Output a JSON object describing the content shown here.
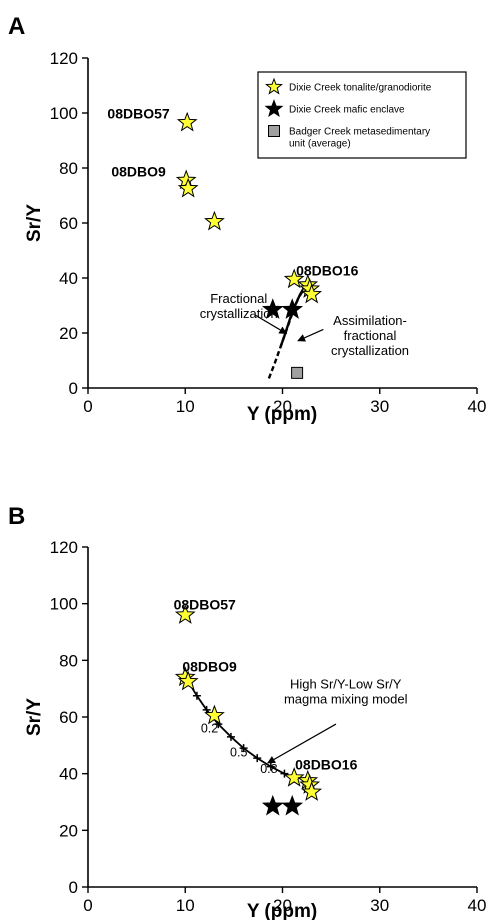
{
  "chart_data": [
    {
      "panel": "A",
      "type": "scatter",
      "xlabel": "Y (ppm)",
      "ylabel": "Sr/Y",
      "xlim": [
        0,
        40
      ],
      "ylim": [
        0,
        120
      ],
      "xticks": [
        0,
        10,
        20,
        30,
        40
      ],
      "yticks": [
        0,
        20,
        40,
        60,
        80,
        100,
        120
      ],
      "legend": {
        "position": "top-right",
        "entries": [
          {
            "name": "Dixie Creek tonalite/granodiorite",
            "marker": "yellow-star"
          },
          {
            "name": "Dixie Creek mafic enclave",
            "marker": "black-star"
          },
          {
            "name": "Badger Creek metasedimentary unit (average)",
            "lines": [
              "Badger Creek metasedimentary",
              "unit (average)"
            ],
            "marker": "gray-square"
          }
        ]
      },
      "series": [
        {
          "name": "Dixie Creek tonalite/granodiorite",
          "marker": "yellow-star",
          "points": [
            [
              10.2,
              96.5
            ],
            [
              10.1,
              75.5
            ],
            [
              10.3,
              72.5
            ],
            [
              13.0,
              60.5
            ],
            [
              21.2,
              39.5
            ],
            [
              22.6,
              37.5
            ],
            [
              22.8,
              36.0
            ],
            [
              23.0,
              34.0
            ]
          ]
        },
        {
          "name": "Dixie Creek mafic enclave",
          "marker": "black-star",
          "points": [
            [
              19.0,
              28.5
            ],
            [
              21.0,
              28.5
            ]
          ]
        },
        {
          "name": "Badger Creek metasedimentary unit (average)",
          "marker": "gray-square",
          "points": [
            [
              21.5,
              5.5
            ]
          ]
        }
      ],
      "curves": [
        {
          "name": "Fractional crystallization",
          "style": "solid",
          "points": [
            [
              19.8,
              15
            ],
            [
              20.3,
              20
            ],
            [
              20.8,
              25.5
            ],
            [
              21.3,
              30
            ],
            [
              21.8,
              34
            ],
            [
              22.3,
              37
            ]
          ]
        },
        {
          "name": "Assimilation-fractional crystallization",
          "style": "dashed",
          "points": [
            [
              18.6,
              3.5
            ],
            [
              19.2,
              9
            ],
            [
              19.8,
              15
            ],
            [
              20.4,
              21
            ],
            [
              21.0,
              27
            ],
            [
              21.6,
              32.5
            ],
            [
              22.2,
              36
            ]
          ]
        }
      ],
      "annotations": [
        {
          "text": "08DBO57",
          "x": 5.2,
          "y": 98
        },
        {
          "text": "08DBO9",
          "x": 5.2,
          "y": 77
        },
        {
          "text": "08DBO16",
          "x": 24.6,
          "y": 41
        },
        {
          "lines": [
            "Fractional",
            "crystallization"
          ],
          "x": 15.5,
          "y": 31.0
        },
        {
          "lines": [
            "Assimilation-",
            "fractional",
            "crystallization"
          ],
          "x": 29.0,
          "y": 23.0
        }
      ],
      "arrows": [
        {
          "from": [
            17.2,
            26.5
          ],
          "to": [
            20.4,
            19.8
          ]
        },
        {
          "from": [
            24.2,
            21.3
          ],
          "to": [
            21.6,
            17.2
          ]
        }
      ]
    },
    {
      "panel": "B",
      "type": "scatter",
      "xlabel": "Y (ppm)",
      "ylabel": "Sr/Y",
      "xlim": [
        0,
        40
      ],
      "ylim": [
        0,
        120
      ],
      "xticks": [
        0,
        10,
        20,
        30,
        40
      ],
      "yticks": [
        0,
        20,
        40,
        60,
        80,
        100,
        120
      ],
      "series": [
        {
          "name": "Dixie Creek tonalite/granodiorite",
          "marker": "yellow-star",
          "points": [
            [
              10.0,
              96.0
            ],
            [
              10.0,
              74.0
            ],
            [
              10.3,
              72.5
            ],
            [
              13.0,
              60.5
            ],
            [
              21.2,
              38.5
            ],
            [
              22.6,
              37.5
            ],
            [
              22.8,
              36.0
            ],
            [
              23.0,
              33.5
            ]
          ]
        },
        {
          "name": "Dixie Creek mafic enclave",
          "marker": "black-star",
          "points": [
            [
              19.0,
              28.5
            ],
            [
              21.0,
              28.5
            ]
          ]
        }
      ],
      "mixing_curve": {
        "name": "High Sr/Y-Low Sr/Y magma mixing model",
        "points": [
          [
            10.3,
            72.5
          ],
          [
            11.2,
            67.5
          ],
          [
            12.2,
            62.5
          ],
          [
            13.4,
            57.5
          ],
          [
            14.7,
            53.0
          ],
          [
            16.0,
            49.0
          ],
          [
            17.4,
            45.5
          ],
          [
            18.8,
            42.5
          ],
          [
            20.2,
            40.0
          ],
          [
            21.2,
            38.5
          ]
        ],
        "tick_labels": [
          {
            "text": "0.2",
            "x": 12.5,
            "y": 54.5
          },
          {
            "text": "0.5",
            "x": 15.5,
            "y": 46.0
          },
          {
            "text": "0.8",
            "x": 18.6,
            "y": 40.2
          }
        ]
      },
      "annotations": [
        {
          "text": "08DBO57",
          "x": 12.0,
          "y": 98
        },
        {
          "text": "08DBO9",
          "x": 12.5,
          "y": 76
        },
        {
          "text": "08DBO16",
          "x": 24.5,
          "y": 41.5
        },
        {
          "lines": [
            "High Sr/Y-Low Sr/Y",
            "magma mixing model"
          ],
          "x": 26.5,
          "y": 70.0
        }
      ],
      "arrows": [
        {
          "from": [
            25.5,
            57.5
          ],
          "to": [
            18.5,
            43.8
          ]
        }
      ]
    }
  ]
}
